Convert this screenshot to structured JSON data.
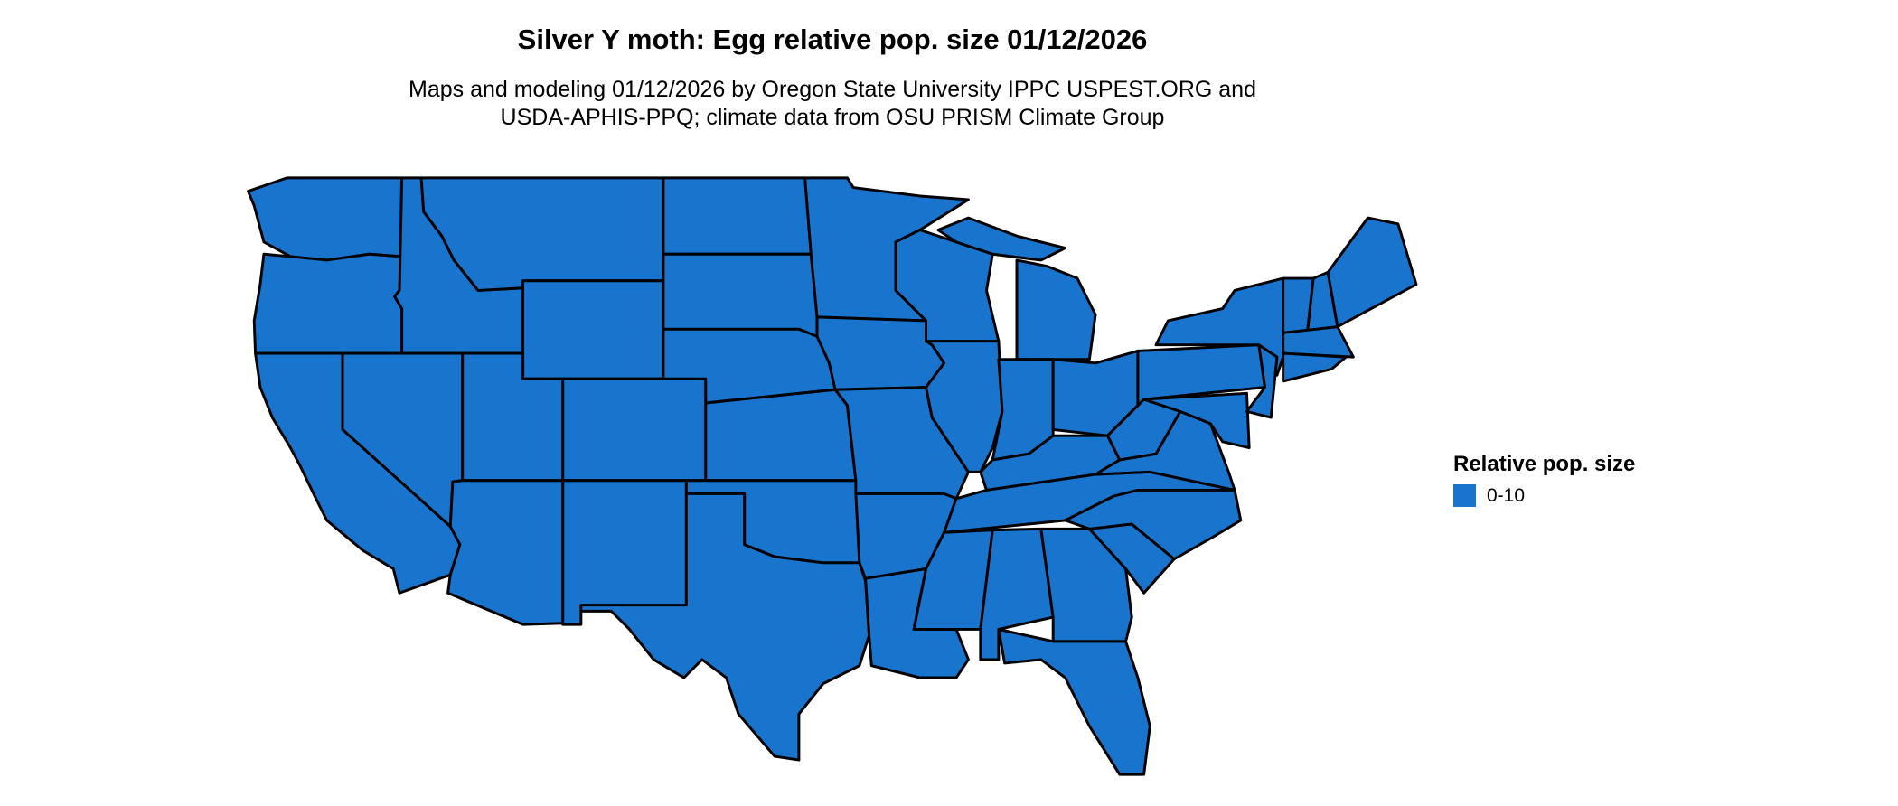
{
  "title": "Silver Y moth: Egg relative pop. size 01/12/2026",
  "subtitle_line1": "Maps and modeling 01/12/2026 by Oregon State University IPPC USPEST.ORG and",
  "subtitle_line2": "USDA-APHIS-PPQ; climate data from OSU PRISM Climate Group",
  "map": {
    "region": "Contiguous United States",
    "fill_color": "#1874CD",
    "border_color": "#000000"
  },
  "legend": {
    "title": "Relative pop. size",
    "items": [
      {
        "label": "0-10",
        "color": "#1874CD"
      }
    ]
  }
}
